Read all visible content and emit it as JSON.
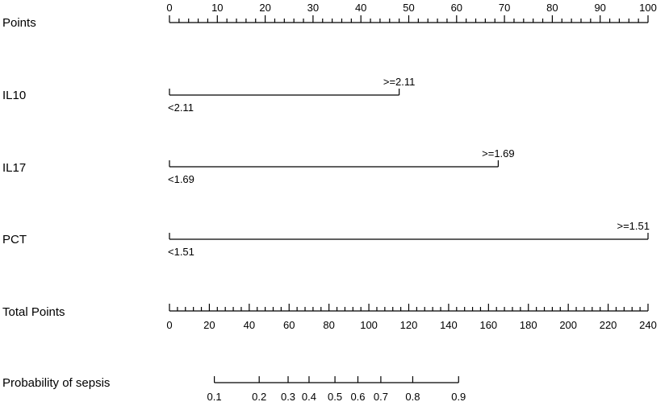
{
  "chart_data": {
    "type": "nomogram",
    "rows": {
      "points": {
        "label": "Points",
        "range": [
          0,
          100
        ],
        "major_ticks": [
          0,
          10,
          20,
          30,
          40,
          50,
          60,
          70,
          80,
          90,
          100
        ],
        "minor_step": 2
      },
      "il10": {
        "label": "IL10",
        "levels": [
          {
            "label": "<2.11",
            "points": 0
          },
          {
            "label": ">=2.11",
            "points": 48
          }
        ]
      },
      "il17": {
        "label": "IL17",
        "levels": [
          {
            "label": "<1.69",
            "points": 0
          },
          {
            "label": ">=1.69",
            "points": 68.7
          }
        ]
      },
      "pct": {
        "label": "PCT",
        "levels": [
          {
            "label": "<1.51",
            "points": 0
          },
          {
            "label": ">=1.51",
            "points": 100
          }
        ]
      },
      "total": {
        "label": "Total Points",
        "range": [
          0,
          240
        ],
        "major_ticks": [
          0,
          20,
          40,
          60,
          80,
          100,
          120,
          140,
          160,
          180,
          200,
          220,
          240
        ],
        "minor_step": 4
      },
      "probability": {
        "label": "Probability of sepsis",
        "ticks": [
          {
            "label": "0.1",
            "total": 22.5
          },
          {
            "label": "0.2",
            "total": 45
          },
          {
            "label": "0.3",
            "total": 59.5
          },
          {
            "label": "0.4",
            "total": 70
          },
          {
            "label": "0.5",
            "total": 83
          },
          {
            "label": "0.6",
            "total": 94.5
          },
          {
            "label": "0.7",
            "total": 106
          },
          {
            "label": "0.8",
            "total": 122
          },
          {
            "label": "0.9",
            "total": 145
          }
        ]
      }
    }
  }
}
